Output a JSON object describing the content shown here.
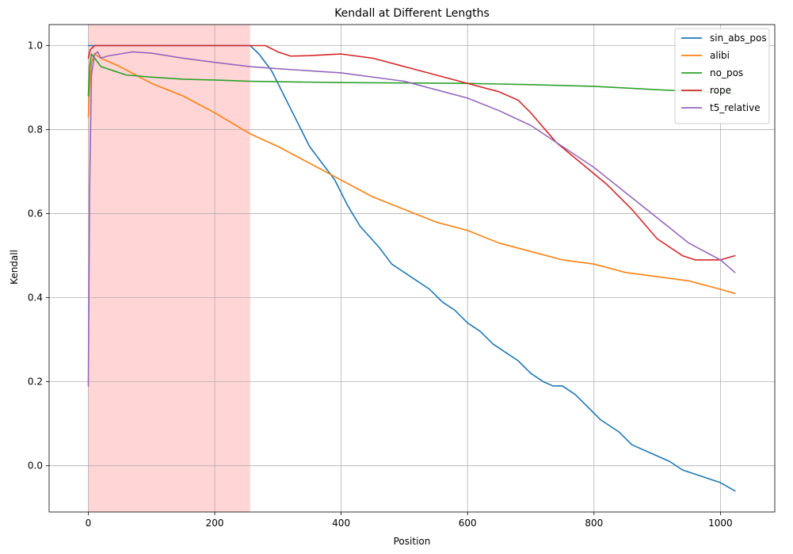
{
  "chart_data": {
    "type": "line",
    "title": "Kendall at Different Lengths",
    "xlabel": "Position",
    "ylabel": "Kendall",
    "xlim": [
      -62,
      1086
    ],
    "ylim": [
      -0.11,
      1.05
    ],
    "x_ticks": [
      0,
      200,
      400,
      600,
      800,
      1000
    ],
    "y_ticks": [
      0.0,
      0.2,
      0.4,
      0.6,
      0.8,
      1.0
    ],
    "x_tick_labels": [
      "0",
      "200",
      "400",
      "600",
      "800",
      "1000"
    ],
    "y_tick_labels": [
      "0.0",
      "0.2",
      "0.4",
      "0.6",
      "0.8",
      "1.0"
    ],
    "grid": true,
    "legend_position": "top-right",
    "shaded_region": {
      "x_start": 0,
      "x_end": 256,
      "color": "#ffb3b3"
    },
    "series": [
      {
        "name": "sin_abs_pos",
        "color": "#1f77b4",
        "points": [
          [
            0,
            1.0
          ],
          [
            50,
            1.0
          ],
          [
            100,
            1.0
          ],
          [
            150,
            1.0
          ],
          [
            200,
            1.0
          ],
          [
            256,
            1.0
          ],
          [
            270,
            0.98
          ],
          [
            290,
            0.94
          ],
          [
            310,
            0.88
          ],
          [
            330,
            0.82
          ],
          [
            350,
            0.76
          ],
          [
            370,
            0.72
          ],
          [
            390,
            0.68
          ],
          [
            410,
            0.62
          ],
          [
            430,
            0.57
          ],
          [
            460,
            0.52
          ],
          [
            480,
            0.48
          ],
          [
            500,
            0.46
          ],
          [
            520,
            0.44
          ],
          [
            540,
            0.42
          ],
          [
            560,
            0.39
          ],
          [
            580,
            0.37
          ],
          [
            600,
            0.34
          ],
          [
            620,
            0.32
          ],
          [
            640,
            0.29
          ],
          [
            660,
            0.27
          ],
          [
            680,
            0.25
          ],
          [
            700,
            0.22
          ],
          [
            720,
            0.2
          ],
          [
            735,
            0.19
          ],
          [
            750,
            0.19
          ],
          [
            770,
            0.17
          ],
          [
            790,
            0.14
          ],
          [
            810,
            0.11
          ],
          [
            840,
            0.08
          ],
          [
            860,
            0.05
          ],
          [
            890,
            0.03
          ],
          [
            920,
            0.01
          ],
          [
            940,
            -0.01
          ],
          [
            960,
            -0.02
          ],
          [
            980,
            -0.03
          ],
          [
            1000,
            -0.04
          ],
          [
            1023,
            -0.06
          ]
        ]
      },
      {
        "name": "alibi",
        "color": "#ff7f0e",
        "points": [
          [
            0,
            0.83
          ],
          [
            2,
            0.9
          ],
          [
            5,
            0.96
          ],
          [
            10,
            0.98
          ],
          [
            20,
            0.97
          ],
          [
            50,
            0.95
          ],
          [
            100,
            0.91
          ],
          [
            150,
            0.88
          ],
          [
            200,
            0.84
          ],
          [
            256,
            0.79
          ],
          [
            300,
            0.76
          ],
          [
            350,
            0.72
          ],
          [
            400,
            0.68
          ],
          [
            450,
            0.64
          ],
          [
            500,
            0.61
          ],
          [
            550,
            0.58
          ],
          [
            600,
            0.56
          ],
          [
            650,
            0.53
          ],
          [
            700,
            0.51
          ],
          [
            750,
            0.49
          ],
          [
            800,
            0.48
          ],
          [
            850,
            0.46
          ],
          [
            900,
            0.45
          ],
          [
            950,
            0.44
          ],
          [
            1000,
            0.42
          ],
          [
            1023,
            0.41
          ]
        ]
      },
      {
        "name": "no_pos",
        "color": "#2ca02c",
        "points": [
          [
            0,
            0.88
          ],
          [
            2,
            0.95
          ],
          [
            5,
            0.98
          ],
          [
            10,
            0.97
          ],
          [
            20,
            0.95
          ],
          [
            40,
            0.94
          ],
          [
            60,
            0.93
          ],
          [
            100,
            0.925
          ],
          [
            150,
            0.92
          ],
          [
            200,
            0.918
          ],
          [
            256,
            0.915
          ],
          [
            300,
            0.914
          ],
          [
            400,
            0.912
          ],
          [
            500,
            0.911
          ],
          [
            600,
            0.91
          ],
          [
            700,
            0.907
          ],
          [
            800,
            0.903
          ],
          [
            900,
            0.895
          ],
          [
            1000,
            0.888
          ],
          [
            1023,
            0.885
          ]
        ]
      },
      {
        "name": "rope",
        "color": "#d62728",
        "points": [
          [
            0,
            0.97
          ],
          [
            3,
            0.99
          ],
          [
            10,
            1.0
          ],
          [
            100,
            1.0
          ],
          [
            200,
            1.0
          ],
          [
            256,
            1.0
          ],
          [
            280,
            1.0
          ],
          [
            300,
            0.985
          ],
          [
            320,
            0.975
          ],
          [
            350,
            0.976
          ],
          [
            400,
            0.98
          ],
          [
            450,
            0.97
          ],
          [
            500,
            0.95
          ],
          [
            550,
            0.93
          ],
          [
            600,
            0.91
          ],
          [
            650,
            0.89
          ],
          [
            680,
            0.87
          ],
          [
            700,
            0.84
          ],
          [
            740,
            0.77
          ],
          [
            780,
            0.72
          ],
          [
            820,
            0.67
          ],
          [
            860,
            0.61
          ],
          [
            900,
            0.54
          ],
          [
            940,
            0.5
          ],
          [
            960,
            0.49
          ],
          [
            980,
            0.49
          ],
          [
            1000,
            0.49
          ],
          [
            1023,
            0.5
          ]
        ]
      },
      {
        "name": "t5_relative",
        "color": "#9467bd",
        "points": [
          [
            0,
            0.19
          ],
          [
            2,
            0.65
          ],
          [
            5,
            0.93
          ],
          [
            10,
            0.98
          ],
          [
            15,
            0.985
          ],
          [
            20,
            0.97
          ],
          [
            30,
            0.975
          ],
          [
            50,
            0.98
          ],
          [
            70,
            0.985
          ],
          [
            100,
            0.982
          ],
          [
            150,
            0.97
          ],
          [
            200,
            0.96
          ],
          [
            256,
            0.95
          ],
          [
            300,
            0.945
          ],
          [
            400,
            0.935
          ],
          [
            500,
            0.915
          ],
          [
            550,
            0.895
          ],
          [
            600,
            0.875
          ],
          [
            650,
            0.845
          ],
          [
            700,
            0.81
          ],
          [
            750,
            0.76
          ],
          [
            800,
            0.71
          ],
          [
            850,
            0.65
          ],
          [
            900,
            0.59
          ],
          [
            950,
            0.53
          ],
          [
            1000,
            0.49
          ],
          [
            1023,
            0.46
          ]
        ]
      }
    ]
  }
}
